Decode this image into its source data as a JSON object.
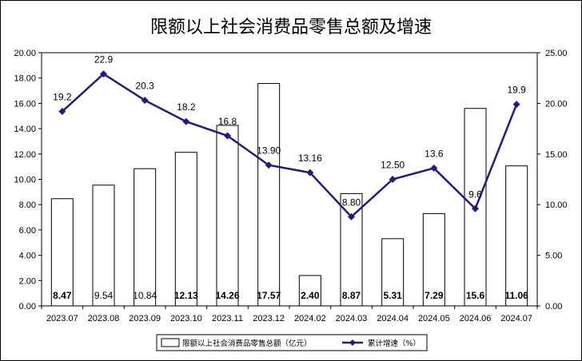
{
  "title": "限额以上社会消费品零售总额及增速",
  "chart_data": {
    "type": "bar",
    "categories": [
      "2023.07",
      "2023.08",
      "2023.09",
      "2023.10",
      "2023.11",
      "2023.12",
      "2024.02",
      "2024.03",
      "2024.04",
      "2024.05",
      "2024.06",
      "2024.07"
    ],
    "series": [
      {
        "name": "限额以上社会消费品零售总额（亿元）",
        "type": "bar",
        "axis": "left",
        "values": [
          8.47,
          9.54,
          10.84,
          12.13,
          14.26,
          17.57,
          2.4,
          8.87,
          5.31,
          7.29,
          15.6,
          11.06
        ],
        "labels": [
          "8.47",
          "9.54",
          "10.84",
          "12.13",
          "14.26",
          "17.57",
          "2.40",
          "8.87",
          "5.31",
          "7.29",
          "15.6",
          "11.06"
        ],
        "bold_labels": [
          true,
          false,
          false,
          true,
          true,
          true,
          true,
          true,
          true,
          true,
          true,
          true
        ]
      },
      {
        "name": "累计增速（%）",
        "type": "line",
        "axis": "right",
        "values": [
          19.2,
          22.9,
          20.3,
          18.2,
          16.8,
          13.9,
          13.16,
          8.8,
          12.5,
          13.6,
          9.6,
          19.9
        ],
        "labels": [
          "19.2",
          "22.9",
          "20.3",
          "18.2",
          "16.8",
          "13.90",
          "13.16",
          "8.80",
          "12.50",
          "13.6",
          "9.6",
          "19.9"
        ]
      }
    ],
    "y_left": {
      "min": 0,
      "max": 20,
      "step": 2,
      "ticks": [
        "0.00",
        "2.00",
        "4.00",
        "6.00",
        "8.00",
        "10.00",
        "12.00",
        "14.00",
        "16.00",
        "18.00",
        "20.00"
      ]
    },
    "y_right": {
      "min": 0,
      "max": 25,
      "step": 5,
      "ticks": [
        "0.00",
        "5.00",
        "10.00",
        "15.00",
        "20.00",
        "25.00"
      ]
    },
    "legend_position": "bottom",
    "grid": false,
    "colors": {
      "bar_fill": "#ffffff",
      "bar_stroke": "#000000",
      "line": "#1f1f7a"
    }
  }
}
